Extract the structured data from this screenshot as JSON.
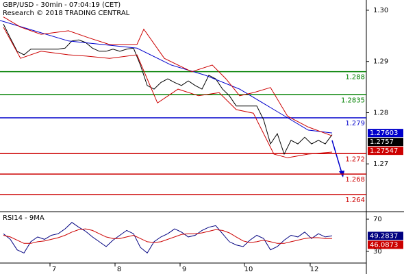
{
  "chart_data": [
    {
      "type": "line",
      "title": "GBP/USD - 30min - 07:04:19 (CET)",
      "subtitle": "Research © 2018 TRADING CENTRAL",
      "x": [
        0,
        1,
        2,
        3,
        4,
        5,
        6,
        7,
        8,
        9,
        10,
        11,
        12,
        13,
        14,
        15,
        16,
        17,
        18,
        19,
        20,
        21,
        22,
        23,
        24,
        25,
        26,
        27,
        28,
        29,
        30,
        31,
        32,
        33,
        34,
        35,
        36,
        37,
        38,
        39,
        40,
        41,
        42,
        43,
        44,
        45,
        46,
        47,
        48
      ],
      "xlim": [
        -0.5,
        53
      ],
      "ylim": [
        1.2608,
        1.302
      ],
      "yticks": [
        1.27,
        1.28,
        1.29,
        {
          "value": 1.3,
          "label": "1.30"
        }
      ],
      "series": [
        {
          "color": "#000000",
          "tag": true,
          "values": [
            1.2973,
            1.2946,
            1.292,
            1.2913,
            1.2924,
            1.2924,
            1.2924,
            1.2924,
            1.2924,
            1.2926,
            1.294,
            1.2942,
            1.2937,
            1.2926,
            1.292,
            1.292,
            1.2924,
            1.292,
            1.2924,
            1.2926,
            1.2893,
            1.2853,
            1.2846,
            1.2859,
            1.2866,
            1.2859,
            1.2853,
            1.2862,
            1.2853,
            1.2846,
            1.2873,
            1.2866,
            1.2846,
            1.2833,
            1.2813,
            1.2813,
            1.2813,
            1.2813,
            1.2786,
            1.2739,
            1.2759,
            1.2719,
            1.2746,
            1.2739,
            1.2752,
            1.2739,
            1.2746,
            1.2739,
            1.2757
          ]
        },
        {
          "color": "#0000cc",
          "tag": true,
          "x": [
            -0.5,
            4.5,
            9.5,
            14.5,
            19.5,
            24.5,
            29.5,
            34.5,
            39.5,
            44.5,
            48
          ],
          "values": [
            1.298,
            1.296,
            1.294,
            1.2933,
            1.2926,
            1.2893,
            1.2873,
            1.2846,
            1.2806,
            1.2766,
            1.27603
          ]
        },
        {
          "color": "#cc0000",
          "tag": true,
          "x": [
            0,
            2.5,
            5.5,
            9.5,
            12.5,
            15.5,
            19.5,
            20.5,
            23.5,
            27.5,
            30.5,
            32.5,
            34.5,
            36.5,
            39,
            41.5,
            44.5,
            48
          ],
          "values": [
            1.2987,
            1.2967,
            1.2953,
            1.296,
            1.2946,
            1.2933,
            1.2933,
            1.2963,
            1.2906,
            1.288,
            1.2893,
            1.2866,
            1.2833,
            1.2839,
            1.2849,
            1.2793,
            1.2772,
            1.27547
          ]
        },
        {
          "color": "#cc0000",
          "x": [
            0,
            2.5,
            5.5,
            9.5,
            12.5,
            15.5,
            19.5,
            22.5,
            25.5,
            28.5,
            31.5,
            34,
            36.5,
            39.5,
            41.5,
            44.5,
            48
          ],
          "values": [
            1.2967,
            1.2906,
            1.292,
            1.2913,
            1.291,
            1.2906,
            1.2913,
            1.2819,
            1.2846,
            1.2833,
            1.2839,
            1.2806,
            1.2799,
            1.2719,
            1.2712,
            1.2719,
            1.2723
          ]
        }
      ],
      "levels": [
        {
          "value": 1.288,
          "color": "#008000"
        },
        {
          "value": 1.2835,
          "color": "#008000"
        },
        {
          "value": 1.279,
          "color": "#0000cc"
        },
        {
          "value": 1.272,
          "color": "#cc0000"
        },
        {
          "value": 1.268,
          "color": "#cc0000"
        },
        {
          "value": 1.264,
          "color": "#cc0000"
        }
      ]
    },
    {
      "type": "line",
      "title": "RSI14 - 9MA",
      "x": [
        0,
        1,
        2,
        3,
        4,
        5,
        6,
        7,
        8,
        9,
        10,
        11,
        12,
        13,
        14,
        15,
        16,
        17,
        18,
        19,
        20,
        21,
        22,
        23,
        24,
        25,
        26,
        27,
        28,
        29,
        30,
        31,
        32,
        33,
        34,
        35,
        36,
        37,
        38,
        39,
        40,
        41,
        42,
        43,
        44,
        45,
        46,
        47,
        48
      ],
      "xlim": [
        -0.5,
        53
      ],
      "xticks": [
        {
          "value": 6.8,
          "label": "7"
        },
        {
          "value": 16.3,
          "label": "8"
        },
        {
          "value": 25.8,
          "label": "9"
        },
        {
          "value": 35.2,
          "label": "10"
        },
        {
          "value": 44.8,
          "label": "12"
        }
      ],
      "ylim": [
        14.7,
        78.5
      ],
      "yticks": [
        30,
        70
      ],
      "series": [
        {
          "color": "#000080",
          "tag": true,
          "values": [
            52,
            45,
            32,
            28,
            42,
            48,
            45,
            50,
            52,
            58,
            66,
            60,
            55,
            48,
            42,
            36,
            44,
            50,
            56,
            52,
            35,
            28,
            42,
            48,
            52,
            58,
            54,
            48,
            50,
            56,
            60,
            62,
            52,
            42,
            38,
            36,
            44,
            50,
            46,
            32,
            36,
            44,
            50,
            48,
            54,
            46,
            52,
            48,
            49.2837
          ]
        },
        {
          "color": "#cc0000",
          "tag": true,
          "values": [
            50,
            48,
            44,
            40,
            40,
            42,
            43,
            45,
            47,
            50,
            54,
            57,
            58,
            56,
            52,
            48,
            46,
            46,
            48,
            50,
            46,
            42,
            41,
            42,
            45,
            48,
            51,
            52,
            52,
            53,
            55,
            57,
            56,
            53,
            48,
            43,
            41,
            42,
            44,
            42,
            40,
            40,
            42,
            44,
            46,
            47,
            47,
            46,
            46.0873
          ]
        }
      ]
    }
  ]
}
